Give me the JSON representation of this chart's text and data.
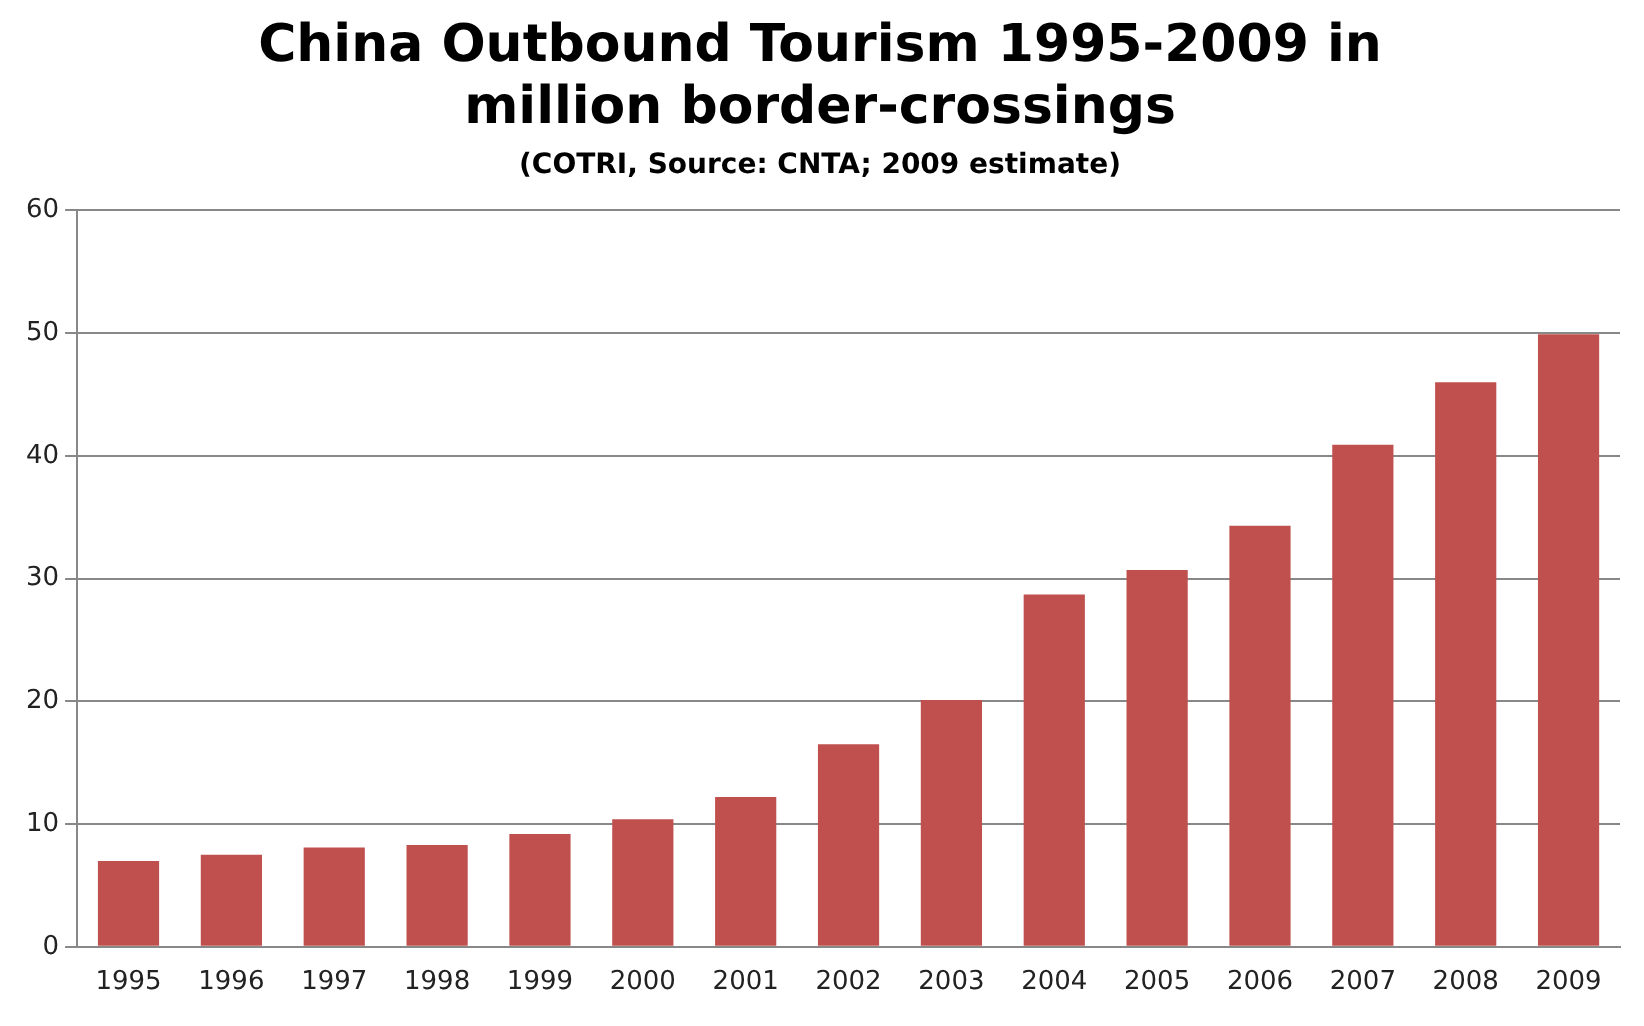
{
  "chart_data": {
    "type": "bar",
    "title": [
      "China Outbound Tourism 1995-2009 in",
      "million border-crossings"
    ],
    "subtitle": "(COTRI, Source: CNTA; 2009 estimate)",
    "categories": [
      "1995",
      "1996",
      "1997",
      "1998",
      "1999",
      "2000",
      "2001",
      "2002",
      "2003",
      "2004",
      "2005",
      "2006",
      "2007",
      "2008",
      "2009"
    ],
    "values": [
      7.0,
      7.5,
      8.1,
      8.3,
      9.2,
      10.4,
      12.2,
      16.5,
      20.1,
      28.7,
      30.7,
      34.3,
      40.9,
      46.0,
      49.9
    ],
    "color": "#c0504d",
    "ylim": [
      0,
      60
    ],
    "yticks": [
      0,
      10,
      20,
      30,
      40,
      50,
      60
    ],
    "grid": "y",
    "legend": false
  }
}
